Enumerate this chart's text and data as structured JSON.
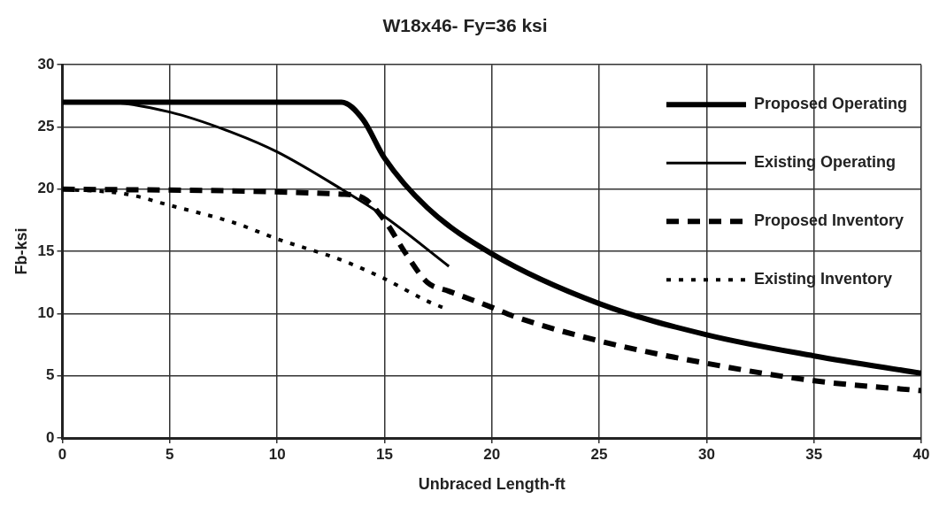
{
  "chart_data": {
    "type": "line",
    "title": "W18x46- Fy=36 ksi",
    "xlabel": "Unbraced Length-ft",
    "ylabel": "Fb-ksi",
    "xlim": [
      0,
      40
    ],
    "xticks": [
      0,
      5,
      10,
      15,
      20,
      25,
      30,
      35,
      40
    ],
    "ylim": [
      0,
      30
    ],
    "yticks": [
      0,
      5,
      10,
      15,
      20,
      25,
      30
    ],
    "grid": true,
    "legend": "top right",
    "marker": "none",
    "series": [
      {
        "name": "Proposed Operating",
        "color": "#000000",
        "line_style": "solid",
        "x": [
          0,
          13,
          14,
          15,
          17,
          20,
          25,
          30,
          35,
          40
        ],
        "values": [
          27,
          27,
          25.6,
          22.5,
          18.5,
          14.8,
          10.8,
          8.3,
          6.6,
          5.2
        ]
      },
      {
        "name": "Existing Operating",
        "color": "#000000",
        "line_style": "solid",
        "x": [
          0,
          2,
          5,
          8,
          10,
          13,
          15,
          18
        ],
        "values": [
          27,
          27,
          26.2,
          24.5,
          23,
          20,
          17.8,
          13.8
        ]
      },
      {
        "name": "Proposed Inventory",
        "color": "#000000",
        "line_style": "dashed",
        "x": [
          0,
          13,
          14,
          15,
          16,
          17,
          18,
          20,
          21,
          25,
          30,
          35,
          40
        ],
        "values": [
          20,
          19.6,
          19.3,
          17.5,
          14.8,
          12.5,
          11.8,
          10.5,
          9.8,
          7.8,
          6,
          4.6,
          3.8
        ]
      },
      {
        "name": "Existing Inventory",
        "color": "#000000",
        "line_style": "dotted",
        "x": [
          0,
          3,
          5,
          8,
          10,
          13,
          15,
          17,
          18
        ],
        "values": [
          20,
          19.6,
          18.7,
          17.3,
          16,
          14.3,
          12.8,
          11,
          10.3
        ]
      }
    ]
  }
}
